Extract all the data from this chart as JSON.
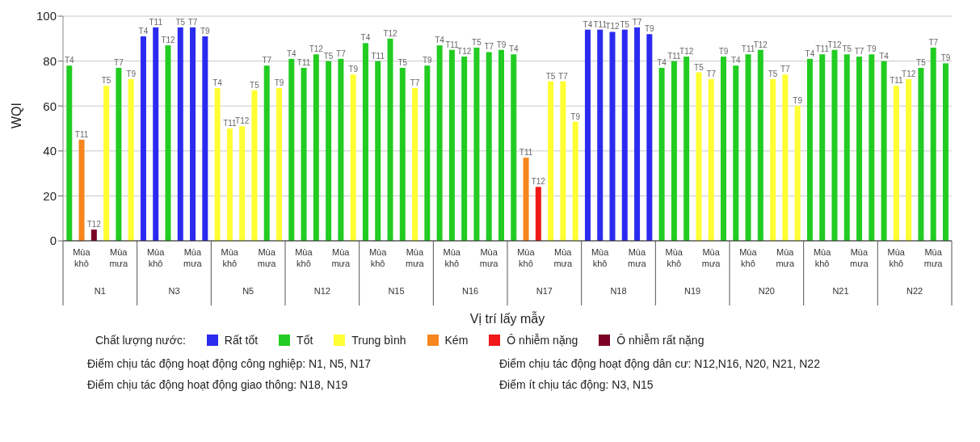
{
  "chart_data": {
    "type": "bar",
    "stacked": true,
    "ylabel": "WQI",
    "xlabel": "Vị trí lấy mẫy",
    "legend_title": "Chất lượng nước:",
    "legend": "bottom",
    "grid": "y",
    "ylim": [
      0,
      100
    ],
    "yticks": [
      0,
      20,
      40,
      60,
      80,
      100
    ],
    "categories": [
      null,
      null,
      null,
      null,
      null,
      null,
      null,
      null,
      null,
      null,
      null,
      null,
      null,
      null,
      null,
      null,
      null,
      null,
      null,
      null,
      null,
      null,
      null,
      null,
      null,
      null,
      null,
      null,
      null,
      null,
      null,
      null,
      null,
      null,
      null,
      null,
      null,
      null,
      null,
      null,
      null,
      null,
      null,
      null,
      null,
      null,
      null,
      null,
      null,
      null,
      null,
      null,
      null,
      null,
      null,
      null,
      null,
      null,
      null,
      null,
      null,
      null,
      null,
      null,
      null,
      null,
      null,
      null,
      null,
      null,
      null,
      null
    ],
    "series": [
      {
        "name": "Rất tốt",
        "color": "#2b2bf0",
        "values": [
          null,
          null,
          null,
          null,
          null,
          null,
          91,
          95,
          null,
          95,
          95,
          91,
          null,
          null,
          null,
          null,
          null,
          null,
          null,
          null,
          null,
          null,
          null,
          null,
          null,
          null,
          null,
          null,
          null,
          null,
          null,
          null,
          null,
          null,
          null,
          null,
          null,
          null,
          null,
          null,
          null,
          null,
          94,
          94,
          93,
          94,
          95,
          92,
          null,
          null,
          null,
          null,
          null,
          null,
          null,
          null,
          null,
          null,
          null,
          null,
          null,
          null,
          null,
          null,
          null,
          null,
          null,
          null,
          null,
          null,
          null,
          null
        ],
        "value_labels": [
          null,
          null,
          null,
          null,
          null,
          null,
          "T4",
          "T11",
          null,
          "T5",
          "T7",
          "T9",
          null,
          null,
          null,
          null,
          null,
          null,
          null,
          null,
          null,
          null,
          null,
          null,
          null,
          null,
          null,
          null,
          null,
          null,
          null,
          null,
          null,
          null,
          null,
          null,
          null,
          null,
          null,
          null,
          null,
          null,
          "T4",
          "T11",
          "T12",
          "T5",
          "T7",
          "T9",
          null,
          null,
          null,
          null,
          null,
          null,
          null,
          null,
          null,
          null,
          null,
          null,
          null,
          null,
          null,
          null,
          null,
          null,
          null,
          null,
          null,
          null,
          null,
          null
        ]
      },
      {
        "name": "Tốt",
        "color": "#22cc22",
        "values": [
          78,
          null,
          null,
          null,
          77,
          null,
          null,
          null,
          87,
          null,
          null,
          null,
          null,
          null,
          null,
          null,
          78,
          null,
          81,
          77,
          83,
          80,
          81,
          null,
          88,
          80,
          90,
          77,
          null,
          78,
          87,
          85,
          82,
          86,
          84,
          85,
          83,
          null,
          null,
          null,
          null,
          null,
          null,
          null,
          null,
          null,
          null,
          null,
          77,
          80,
          82,
          null,
          null,
          82,
          78,
          83,
          85,
          null,
          null,
          null,
          81,
          83,
          85,
          83,
          82,
          83,
          80,
          null,
          null,
          77,
          86,
          79
        ],
        "value_labels": [
          "T4",
          null,
          null,
          null,
          "T7",
          null,
          null,
          null,
          "T12",
          null,
          null,
          null,
          null,
          null,
          null,
          null,
          "T7",
          null,
          "T4",
          "T11",
          "T12",
          "T5",
          "T7",
          null,
          "T4",
          "T11",
          "T12",
          "T5",
          null,
          "T9",
          "T4",
          "T11",
          "T12",
          "T5",
          "T7",
          "T9",
          "T4",
          null,
          null,
          null,
          null,
          null,
          null,
          null,
          null,
          null,
          null,
          null,
          "T4",
          "T11",
          "T12",
          null,
          null,
          "T9",
          "T4",
          "T11",
          "T12",
          null,
          null,
          null,
          "T4",
          "T11",
          "T12",
          "T5",
          "T7",
          "T9",
          "T4",
          null,
          null,
          "T5",
          "T7",
          "T9"
        ]
      },
      {
        "name": "Trung bình",
        "color": "#ffff33",
        "values": [
          null,
          null,
          null,
          69,
          null,
          72,
          null,
          null,
          null,
          null,
          null,
          null,
          68,
          50,
          51,
          67,
          null,
          68,
          null,
          null,
          null,
          null,
          null,
          74,
          null,
          null,
          null,
          null,
          68,
          null,
          null,
          null,
          null,
          null,
          null,
          null,
          null,
          null,
          null,
          71,
          71,
          53,
          null,
          null,
          null,
          null,
          null,
          null,
          null,
          null,
          null,
          75,
          72,
          null,
          null,
          null,
          null,
          72,
          74,
          60,
          null,
          null,
          null,
          null,
          null,
          null,
          null,
          69,
          72,
          null,
          null,
          null
        ],
        "value_labels": [
          null,
          null,
          null,
          "T5",
          null,
          "T9",
          null,
          null,
          null,
          null,
          null,
          null,
          "T4",
          "T11",
          "T12",
          "T5",
          null,
          "T9",
          null,
          null,
          null,
          null,
          null,
          "T9",
          null,
          null,
          null,
          null,
          "T7",
          null,
          null,
          null,
          null,
          null,
          null,
          null,
          null,
          null,
          null,
          "T5",
          "T7",
          "T9",
          null,
          null,
          null,
          null,
          null,
          null,
          null,
          null,
          null,
          "T5",
          "T7",
          null,
          null,
          null,
          null,
          "T5",
          "T7",
          "T9",
          null,
          null,
          null,
          null,
          null,
          null,
          null,
          "T11",
          "T12",
          null,
          null,
          null
        ]
      },
      {
        "name": "Kém",
        "color": "#f7861e",
        "values": [
          null,
          45,
          null,
          null,
          null,
          null,
          null,
          null,
          null,
          null,
          null,
          null,
          null,
          null,
          null,
          null,
          null,
          null,
          null,
          null,
          null,
          null,
          null,
          null,
          null,
          null,
          null,
          null,
          null,
          null,
          null,
          null,
          null,
          null,
          null,
          null,
          null,
          37,
          null,
          null,
          null,
          null,
          null,
          null,
          null,
          null,
          null,
          null,
          null,
          null,
          null,
          null,
          null,
          null,
          null,
          null,
          null,
          null,
          null,
          null,
          null,
          null,
          null,
          null,
          null,
          null,
          null,
          null,
          null,
          null,
          null,
          null
        ],
        "value_labels": [
          null,
          "T11",
          null,
          null,
          null,
          null,
          null,
          null,
          null,
          null,
          null,
          null,
          null,
          null,
          null,
          null,
          null,
          null,
          null,
          null,
          null,
          null,
          null,
          null,
          null,
          null,
          null,
          null,
          null,
          null,
          null,
          null,
          null,
          null,
          null,
          null,
          null,
          "T11",
          null,
          null,
          null,
          null,
          null,
          null,
          null,
          null,
          null,
          null,
          null,
          null,
          null,
          null,
          null,
          null,
          null,
          null,
          null,
          null,
          null,
          null,
          null,
          null,
          null,
          null,
          null,
          null,
          null,
          null,
          null,
          null,
          null,
          null
        ]
      },
      {
        "name": "Ô nhiễm nặng",
        "color": "#f01818",
        "values": [
          null,
          null,
          null,
          null,
          null,
          null,
          null,
          null,
          null,
          null,
          null,
          null,
          null,
          null,
          null,
          null,
          null,
          null,
          null,
          null,
          null,
          null,
          null,
          null,
          null,
          null,
          null,
          null,
          null,
          null,
          null,
          null,
          null,
          null,
          null,
          null,
          null,
          null,
          24,
          null,
          null,
          null,
          null,
          null,
          null,
          null,
          null,
          null,
          null,
          null,
          null,
          null,
          null,
          null,
          null,
          null,
          null,
          null,
          null,
          null,
          null,
          null,
          null,
          null,
          null,
          null,
          null,
          null,
          null,
          null,
          null,
          null
        ],
        "value_labels": [
          null,
          null,
          null,
          null,
          null,
          null,
          null,
          null,
          null,
          null,
          null,
          null,
          null,
          null,
          null,
          null,
          null,
          null,
          null,
          null,
          null,
          null,
          null,
          null,
          null,
          null,
          null,
          null,
          null,
          null,
          null,
          null,
          null,
          null,
          null,
          null,
          null,
          null,
          "T12",
          null,
          null,
          null,
          null,
          null,
          null,
          null,
          null,
          null,
          null,
          null,
          null,
          null,
          null,
          null,
          null,
          null,
          null,
          null,
          null,
          null,
          null,
          null,
          null,
          null,
          null,
          null,
          null,
          null,
          null,
          null,
          null,
          null
        ]
      },
      {
        "name": "Ô nhiễm rất nặng",
        "color": "#7a0025",
        "values": [
          null,
          null,
          5,
          null,
          null,
          null,
          null,
          null,
          null,
          null,
          null,
          null,
          null,
          null,
          null,
          null,
          null,
          null,
          null,
          null,
          null,
          null,
          null,
          null,
          null,
          null,
          null,
          null,
          null,
          null,
          null,
          null,
          null,
          null,
          null,
          null,
          null,
          null,
          null,
          null,
          null,
          null,
          null,
          null,
          null,
          null,
          null,
          null,
          null,
          null,
          null,
          null,
          null,
          null,
          null,
          null,
          null,
          null,
          null,
          null,
          null,
          null,
          null,
          null,
          null,
          null,
          null,
          null,
          null,
          null,
          null,
          null
        ],
        "value_labels": [
          null,
          null,
          "T12",
          null,
          null,
          null,
          null,
          null,
          null,
          null,
          null,
          null,
          null,
          null,
          null,
          null,
          null,
          null,
          null,
          null,
          null,
          null,
          null,
          null,
          null,
          null,
          null,
          null,
          null,
          null,
          null,
          null,
          null,
          null,
          null,
          null,
          null,
          null,
          null,
          null,
          null,
          null,
          null,
          null,
          null,
          null,
          null,
          null,
          null,
          null,
          null,
          null,
          null,
          null,
          null,
          null,
          null,
          null,
          null,
          null,
          null,
          null,
          null,
          null,
          null,
          null,
          null,
          null,
          null,
          null,
          null,
          null
        ]
      }
    ],
    "annotations": [
      "Mùa khô",
      "Mùa mưa",
      "N1",
      "Mùa khô",
      "Mùa mưa",
      "N3",
      "Mùa khô",
      "Mùa mưa",
      "N5",
      "Mùa khô",
      "Mùa mưa",
      "N12",
      "Mùa khô",
      "Mùa mưa",
      "N15",
      "Mùa khô",
      "Mùa mưa",
      "N16",
      "Mùa khô",
      "Mùa mưa",
      "N17",
      "Mùa khô",
      "Mùa mưa",
      "N18",
      "Mùa khô",
      "Mùa mưa",
      "N19",
      "Mùa khô",
      "Mùa mưa",
      "N20",
      "Mùa khô",
      "Mùa mưa",
      "N21",
      "Mùa khô",
      "Mùa mưa",
      "N22",
      "Điểm chịu tác động hoạt động công nghiệp: N1, N5, N17",
      "Điểm chịu tác động hoạt động dân cư: N12,N16, N20, N21, N22",
      "Điểm chịu tác động hoạt động giao thông: N18, N19",
      "Điểm ít chịu tác động: N3, N15"
    ]
  }
}
